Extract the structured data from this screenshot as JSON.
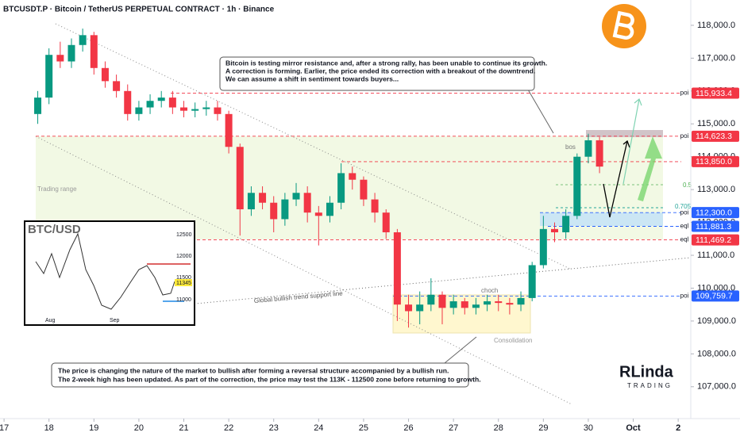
{
  "header": "BTCUSDT.P · Bitcoin / TetherUS PERPETUAL CONTRACT · 1h · Binance",
  "chart_data": {
    "type": "candlestick",
    "x": [
      17.75,
      18,
      18.25,
      18.5,
      18.75,
      19,
      19.25,
      19.5,
      19.75,
      20,
      20.25,
      20.5,
      20.75,
      21,
      21.25,
      21.5,
      21.75,
      22,
      22.25,
      22.5,
      22.75,
      23,
      23.25,
      23.5,
      23.75,
      24,
      24.25,
      24.5,
      24.75,
      25,
      25.25,
      25.5,
      25.75,
      26,
      26.25,
      26.5,
      26.75,
      27,
      27.25,
      27.5,
      27.75,
      28,
      28.25,
      28.5,
      28.75,
      29,
      29.25,
      29.5,
      29.75,
      30,
      30.25
    ],
    "open": [
      115300,
      115800,
      117100,
      116900,
      117400,
      117700,
      116700,
      116300,
      116000,
      115300,
      115500,
      115700,
      115800,
      115500,
      115400,
      115450,
      115500,
      115300,
      114300,
      112400,
      112900,
      112600,
      112100,
      112700,
      112900,
      112300,
      112200,
      112600,
      113500,
      113300,
      112700,
      112300,
      111700,
      109500,
      109300,
      109500,
      109800,
      109400,
      109600,
      109400,
      109500,
      109600,
      109550,
      109500,
      109700,
      110700,
      111800,
      111700,
      112200,
      114000,
      114500
    ],
    "high": [
      116000,
      117300,
      117500,
      117600,
      117900,
      117800,
      116900,
      116500,
      116200,
      115700,
      115900,
      116000,
      116000,
      115700,
      115650,
      115700,
      115700,
      115400,
      114400,
      113100,
      113100,
      112800,
      112900,
      113200,
      113100,
      112500,
      112800,
      113800,
      113700,
      113400,
      112900,
      112400,
      111800,
      109800,
      109900,
      110300,
      109900,
      109800,
      109700,
      109700,
      109800,
      109800,
      109700,
      109900,
      110800,
      112200,
      112000,
      112400,
      114100,
      114700,
      114600
    ],
    "low": [
      115000,
      115600,
      116700,
      116700,
      117200,
      116500,
      116100,
      115800,
      115100,
      115100,
      115300,
      115500,
      115300,
      115200,
      115200,
      115250,
      115100,
      114100,
      111600,
      112200,
      112400,
      111700,
      111900,
      112500,
      112000,
      111300,
      112000,
      112400,
      113000,
      112500,
      112000,
      111500,
      109000,
      108800,
      108900,
      109300,
      108900,
      109200,
      109200,
      109200,
      109300,
      109300,
      109200,
      109300,
      109600,
      110600,
      111400,
      111500,
      112100,
      113800,
      113500
    ],
    "close": [
      115800,
      117100,
      116900,
      117400,
      117700,
      116700,
      116300,
      116000,
      115300,
      115500,
      115700,
      115800,
      115500,
      115400,
      115450,
      115500,
      115300,
      114300,
      112400,
      112900,
      112600,
      112100,
      112700,
      112900,
      112300,
      112200,
      112600,
      113500,
      113300,
      112700,
      112300,
      111700,
      109500,
      109300,
      109500,
      109800,
      109400,
      109600,
      109400,
      109500,
      109600,
      109550,
      109500,
      109700,
      110700,
      111800,
      111700,
      112200,
      114000,
      114500,
      113700
    ],
    "up_color": "#089981",
    "down_color": "#f23645",
    "xlim": [
      16.91,
      32.28
    ],
    "xticks": [
      17,
      18,
      19,
      20,
      21,
      22,
      23,
      24,
      25,
      26,
      27,
      28,
      29,
      30,
      {
        "value": 31,
        "label": "Oct"
      },
      {
        "value": 32,
        "label": "2"
      }
    ],
    "ylim": [
      106030,
      118770
    ],
    "yticks": [
      {
        "value": 107000,
        "label": "107,000.0"
      },
      {
        "value": 108000,
        "label": "108,000.0"
      },
      {
        "value": 109000,
        "label": "109,000.0"
      },
      {
        "value": 110000,
        "label": "110,000.0"
      },
      {
        "value": 111000,
        "label": "111,000.0"
      },
      {
        "value": 112000,
        "label": "112,000.0"
      },
      {
        "value": 113000,
        "label": "113,000.0"
      },
      {
        "value": 114000,
        "label": "114,000.0"
      },
      {
        "value": 115000,
        "label": "115,000.0"
      },
      {
        "value": 116000,
        "label": "116,000.0"
      },
      {
        "value": 117000,
        "label": "117,000.0"
      },
      {
        "value": 118000,
        "label": "118,000.0"
      }
    ],
    "levels": [
      {
        "value": 115933.4,
        "label": "115,933.4",
        "tag": "poi",
        "color": "#f23645"
      },
      {
        "value": 114623.3,
        "label": "114,623.3",
        "tag": "poi",
        "color": "#f23645"
      },
      {
        "value": 113850,
        "label": "113,850.0",
        "color": "#f23645"
      },
      {
        "value": 112300,
        "label": "112,300.0",
        "tag": "poi",
        "color": "#2962ff"
      },
      {
        "value": 111881.3,
        "label": "111,881.3",
        "tag": "eql",
        "color": "#2962ff"
      },
      {
        "value": 111469.2,
        "label": "111,469.2",
        "tag": "eql",
        "color": "#f23645"
      },
      {
        "value": 109759.7,
        "label": "109,759.7",
        "tag": "poi",
        "color": "#2962ff"
      }
    ]
  },
  "annotations": {
    "top_box": [
      "Bitcoin is testing mirror resistance and, after a strong rally, has been unable to continue its growth.",
      "A correction is forming. Earlier, the price ended its correction with a breakout of the downtrend.",
      "We can assume a shift in sentiment towards buyers..."
    ],
    "bottom_box": [
      "The price is changing the nature of the market to bullish after forming a reversal structure accompanied by a bullish run.",
      "The 2-week high has been updated. As part of the correction, the price may test the 113K - 112500 zone before returning to growth."
    ],
    "trading_range": "Trading range",
    "support_line": "Global bullish trend support line",
    "choch": "choch",
    "consolidation": "Consolidation",
    "bos": "bos",
    "fib_05": "0.5",
    "fib_0705": "0.705"
  },
  "inset": {
    "title": "BTC/USD",
    "yticks": [
      12500,
      12000,
      11500,
      11000
    ],
    "last_price": 11345,
    "x_labels": [
      "Aug",
      "Sep"
    ]
  },
  "brand": {
    "name": "RLinda",
    "sub": "TRADING"
  }
}
